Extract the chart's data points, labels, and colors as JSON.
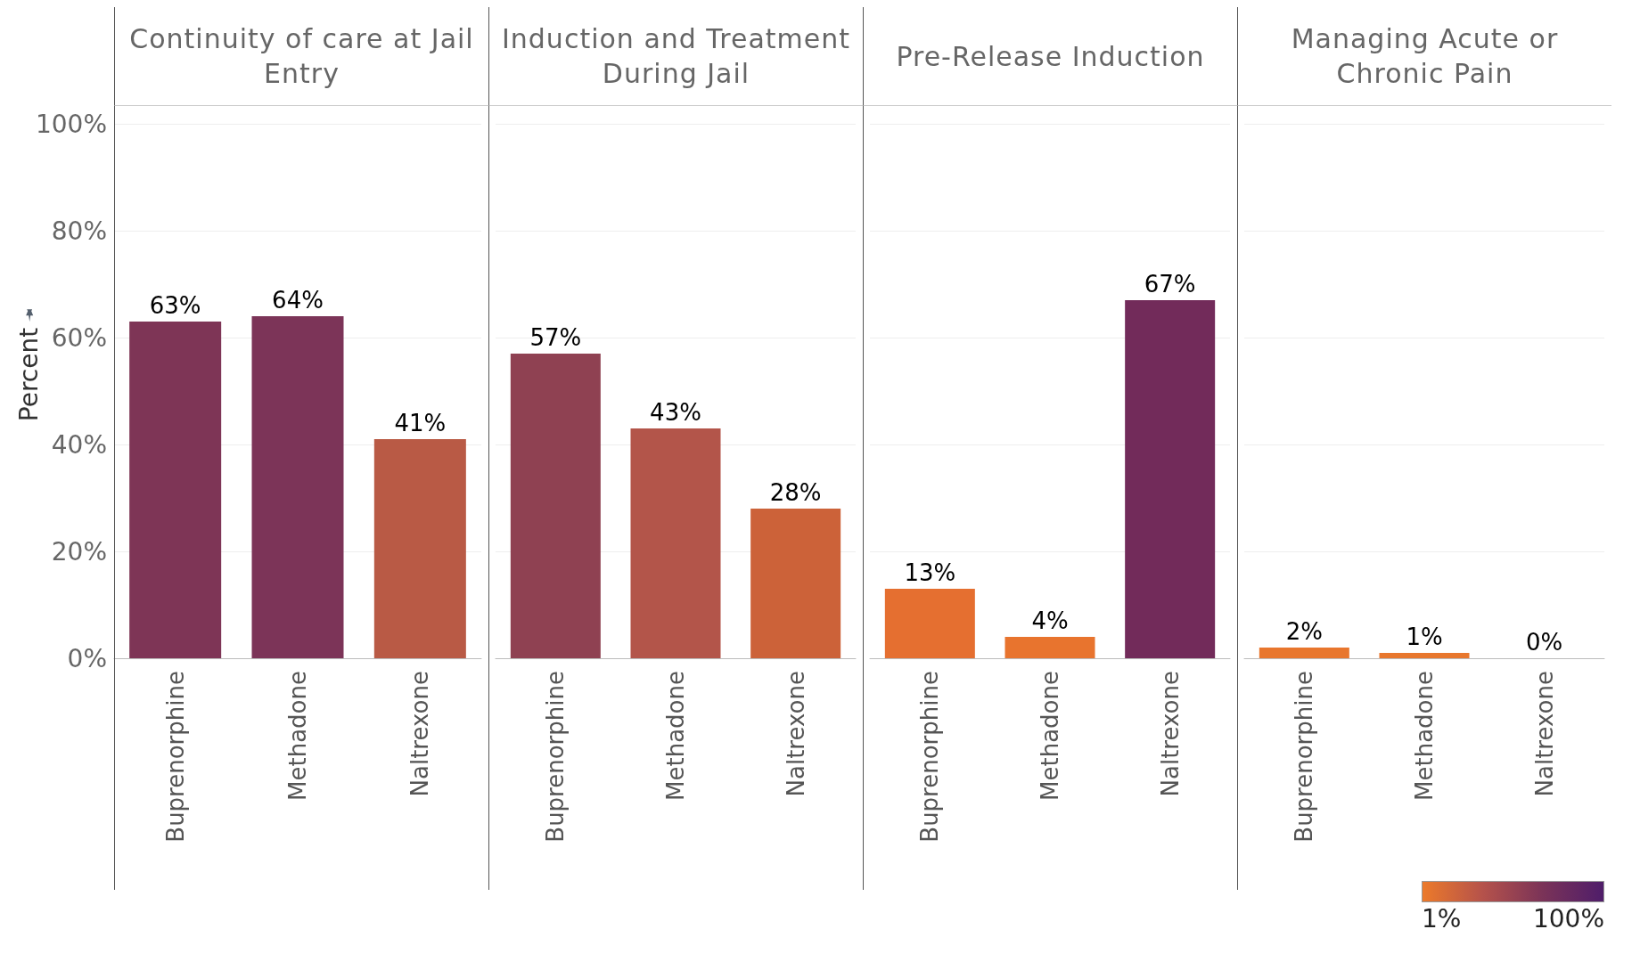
{
  "chart_data": [
    {
      "type": "bar",
      "title": "Continuity of care at Jail Entry",
      "ylabel": "Percent",
      "categories": [
        "Buprenorphine",
        "Methadone",
        "Naltrexone"
      ],
      "values": [
        63,
        64,
        41
      ],
      "colors": [
        "#7e3556",
        "#7c3458",
        "#b95a45"
      ],
      "value_labels": [
        "63%",
        "64%",
        "41%"
      ],
      "ylim": [
        0,
        100
      ],
      "yticks": [
        {
          "value": 0,
          "label": "0%"
        },
        {
          "value": 20,
          "label": "20%"
        },
        {
          "value": 40,
          "label": "40%"
        },
        {
          "value": 60,
          "label": "60%"
        },
        {
          "value": 80,
          "label": "80%"
        },
        {
          "value": 100,
          "label": "100%"
        }
      ],
      "grid": "y"
    },
    {
      "type": "bar",
      "title": "Induction and Treatment During Jail",
      "categories": [
        "Buprenorphine",
        "Methadone",
        "Naltrexone"
      ],
      "values": [
        57,
        43,
        28
      ],
      "colors": [
        "#8f4152",
        "#b3554a",
        "#cc6239"
      ],
      "value_labels": [
        "57%",
        "43%",
        "28%"
      ],
      "ylim": [
        0,
        100
      ],
      "yticks": [
        {
          "value": 0,
          "label": null
        },
        {
          "value": 20,
          "label": null
        },
        {
          "value": 40,
          "label": null
        },
        {
          "value": 60,
          "label": null
        },
        {
          "value": 80,
          "label": null
        },
        {
          "value": 100,
          "label": null
        }
      ],
      "grid": "y",
      "tick_labels": "x"
    },
    {
      "type": "bar",
      "title": "Pre-Release Induction",
      "categories": [
        "Buprenorphine",
        "Methadone",
        "Naltrexone"
      ],
      "values": [
        13,
        4,
        67
      ],
      "colors": [
        "#e56f30",
        "#e8742e",
        "#722b5a"
      ],
      "value_labels": [
        "13%",
        "4%",
        "67%"
      ],
      "ylim": [
        0,
        100
      ],
      "yticks": [
        {
          "value": 0,
          "label": null
        },
        {
          "value": 20,
          "label": null
        },
        {
          "value": 40,
          "label": null
        },
        {
          "value": 60,
          "label": null
        },
        {
          "value": 80,
          "label": null
        },
        {
          "value": 100,
          "label": null
        }
      ],
      "grid": "y",
      "tick_labels": "x"
    },
    {
      "type": "bar",
      "title": "Managing Acute or Chronic Pain",
      "categories": [
        "Buprenorphine",
        "Methadone",
        "Naltrexone"
      ],
      "values": [
        2,
        1,
        0
      ],
      "colors": [
        "#e8762d",
        "#e8772d",
        "#e8782c"
      ],
      "value_labels": [
        "2%",
        "1%",
        "0%"
      ],
      "ylim": [
        0,
        100
      ],
      "yticks": [
        {
          "value": 0,
          "label": null
        },
        {
          "value": 20,
          "label": null
        },
        {
          "value": 40,
          "label": null
        },
        {
          "value": 60,
          "label": null
        },
        {
          "value": 80,
          "label": null
        },
        {
          "value": 100,
          "label": null
        }
      ],
      "grid": "y",
      "tick_labels": "x",
      "clim": [
        1,
        100
      ],
      "cticks": [
        {
          "value": 1,
          "label": "1%"
        },
        {
          "value": 100,
          "label": "100%"
        }
      ]
    }
  ]
}
